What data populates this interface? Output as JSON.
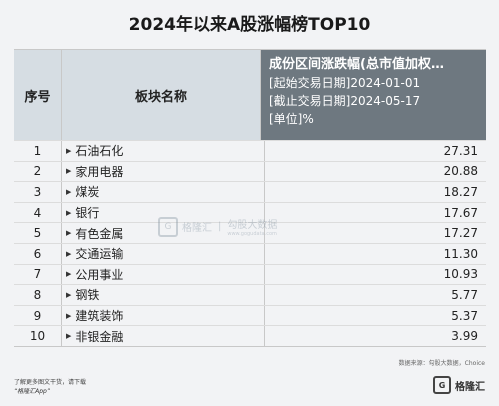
{
  "title": "2024年以来A股涨幅榜TOP10",
  "header": {
    "col_index": "序号",
    "col_name": "板块名称",
    "col_value_main": "成份区间涨跌幅(总市值加权…",
    "col_value_start": "[起始交易日期]2024-01-01",
    "col_value_end": "[截止交易日期]2024-05-17",
    "col_value_unit": "[单位]%"
  },
  "rows": [
    {
      "idx": "1",
      "name": "石油石化",
      "value": "27.31"
    },
    {
      "idx": "2",
      "name": "家用电器",
      "value": "20.88"
    },
    {
      "idx": "3",
      "name": "煤炭",
      "value": "18.27"
    },
    {
      "idx": "4",
      "name": "银行",
      "value": "17.67"
    },
    {
      "idx": "5",
      "name": "有色金属",
      "value": "17.27"
    },
    {
      "idx": "6",
      "name": "交通运输",
      "value": "11.30"
    },
    {
      "idx": "7",
      "name": "公用事业",
      "value": "10.93"
    },
    {
      "idx": "8",
      "name": "钢铁",
      "value": "5.77"
    },
    {
      "idx": "9",
      "name": "建筑装饰",
      "value": "5.37"
    },
    {
      "idx": "10",
      "name": "非银金融",
      "value": "3.99"
    }
  ],
  "source": "数据来源：勾股大数据，Choice",
  "footer": {
    "hint": "了解更多图文干货，请下载",
    "app": "“格隆汇App”",
    "brand": "格隆汇",
    "logo_letter": "G"
  },
  "watermark": {
    "logo_letter": "G",
    "brand": "格隆汇",
    "divider": "|",
    "partner": "勾股大数据",
    "partner_url": "www.gogudata.com"
  },
  "icons": {
    "row_marker": "triangle-right-icon"
  },
  "colors": {
    "header_dark": "#6e7880",
    "header_light": "#d6dde3",
    "background": "#f2f3f5"
  }
}
